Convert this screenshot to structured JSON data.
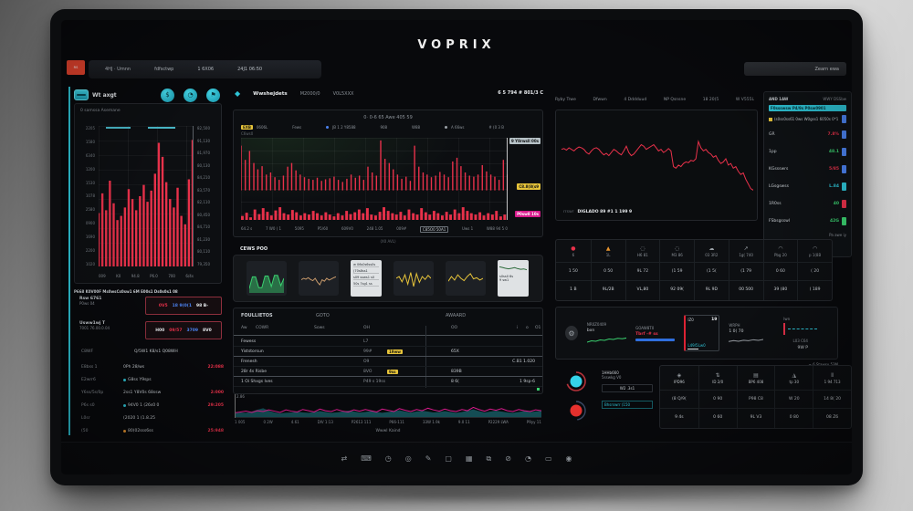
{
  "colors": {
    "red": "#e8314a",
    "green": "#3ad06f",
    "teal": "#2ec4d6",
    "blue": "#4b82f0",
    "yellow": "#e6c33a",
    "magenta": "#d81b8c",
    "orange": "#e8952e",
    "white": "#e6e9ec",
    "gray": "#9aa0a6",
    "tan": "#c89a6b",
    "tealDark": "#16545c",
    "dkgreen": "#2c6b3a"
  },
  "brand": {
    "title": "VOPRIX"
  },
  "toolbar": {
    "alert_button": "RS",
    "items": [
      "4HJ · Umnn",
      "fdfsctwp",
      "1 6X06",
      "24J1 06:50"
    ],
    "account_button": "Zearn ewa"
  },
  "sidebar": {
    "wallet_label": "Wt axgt",
    "icons": [
      {
        "g": "$"
      },
      {
        "g": "◔"
      },
      {
        "g": "⚑"
      }
    ],
    "panel_title": "0 samssa Asemane",
    "chart": {
      "type": "spikes",
      "color": "red",
      "w": 2.4,
      "values": [
        38,
        52,
        40,
        61,
        45,
        33,
        36,
        42,
        55,
        48,
        40,
        50,
        58,
        46,
        54,
        66,
        88,
        78,
        60,
        48,
        42,
        56,
        36,
        30,
        62,
        90
      ]
    },
    "y_left": [
      "2205",
      "1580",
      "6340",
      "1200",
      "1530",
      "1078",
      "2580",
      "0900",
      "1690",
      "2200",
      "1020"
    ],
    "y_right": [
      "82,500",
      "91,130",
      "81,970",
      "80,130",
      "84,210",
      "83,570",
      "82,110",
      "80,450",
      "84,710",
      "81,230",
      "80,110",
      "79,350"
    ],
    "x_ticks": [
      "009",
      "K0",
      "94.8",
      "P6.0",
      "700",
      "6/4s"
    ],
    "details_title": "P668 K0V00F Ms0wsCs0sw1 6M E00s1 Ds0s0s1 08",
    "box_rows": [
      {
        "l1": "Rsw 6761",
        "l2": "P0ws 04",
        "vals": [
          {
            "t": "0V5",
            "c": "red"
          },
          {
            "t": "18 9(0(1",
            "c": "blue"
          },
          {
            "t": "98 B-",
            "c": "white"
          }
        ]
      },
      {
        "l1": "Usww1wj T",
        "l2": "7001 76.00.0.04",
        "vals": [
          {
            "t": "H00",
            "c": "white"
          },
          {
            "t": "09/57",
            "c": "red"
          },
          {
            "t": "3709",
            "c": "blue"
          },
          {
            "t": "8V0",
            "c": "white"
          }
        ]
      }
    ],
    "summary": {
      "label": "C8WF",
      "value": "Q/5W1 K8/s1 Q08WH"
    },
    "rows": [
      {
        "label": "E8bss 1",
        "mid": "0Ph 28/ws",
        "val": "22:088"
      },
      {
        "label": "E2wrr6",
        "mid": "G8ss Y9sps",
        "val": "",
        "dot": "teal"
      },
      {
        "label": "Y6ss/5s/0p",
        "mid": "2ss1 Y8V0s 68ssw",
        "val": "2:000"
      },
      {
        "label": "P6s s0",
        "mid": "94V0 1 (26s0 0",
        "val": "29:205",
        "dot": "teal"
      },
      {
        "label": "L0sr",
        "mid": "(2020 1 (1.8.25",
        "val": ""
      },
      {
        "label": "(50",
        "mid": "80(02sss6ss",
        "val": "25:948",
        "dot": "orange"
      }
    ]
  },
  "center": {
    "header": {
      "symbol": "Wwshejdets",
      "item1": "M2000/0",
      "item2": "V0L5XXX",
      "right": "6 5 794 # 801/3 C"
    },
    "main_chart": {
      "title": "0· 0-6 65 Awe 405 59",
      "legend_chip": "EXB",
      "legend_sub": "C6ws0",
      "legend": [
        {
          "t": "0606L"
        },
        {
          "t": "Fews"
        },
        {
          "t": "JB 1 2 Y8588",
          "dot": "blue"
        },
        {
          "t": "908"
        },
        {
          "t": "W88"
        },
        {
          "t": "A 66ws",
          "dot": "gray"
        },
        {
          "t": "# (0 3 B"
        }
      ],
      "tag_top": "9 Y8rwsll 00s",
      "tag_mid": "C8.8(8(s9",
      "tag_bot": "P0sw8 10s",
      "spikes": {
        "type": "spikes",
        "color": "red",
        "w": 1.4,
        "values": [
          85,
          58,
          75,
          52,
          40,
          46,
          30,
          34,
          25,
          20,
          28,
          45,
          52,
          38,
          30,
          25,
          22,
          20,
          24,
          18,
          21,
          23,
          26,
          20,
          16,
          22,
          30,
          24,
          28,
          20,
          45,
          34,
          28,
          95,
          60,
          52,
          40,
          30,
          22,
          26,
          18,
          85,
          45,
          34,
          30,
          25,
          28,
          35,
          30,
          25,
          55,
          62,
          46,
          34,
          28,
          26,
          30,
          48,
          36,
          30,
          26,
          20,
          58,
          30
        ]
      },
      "volume": {
        "type": "bars",
        "color": "red",
        "values": [
          18,
          32,
          12,
          46,
          26,
          52,
          36,
          20,
          42,
          56,
          30,
          24,
          44,
          34,
          20,
          30,
          24,
          40,
          30,
          20,
          34,
          24,
          16,
          30,
          20,
          40,
          26,
          34,
          46,
          30,
          52,
          24,
          20,
          36,
          56,
          40,
          30,
          24,
          36,
          20,
          46,
          30,
          24,
          52,
          34,
          24,
          40,
          30,
          20,
          36,
          24,
          46,
          30,
          56,
          40,
          30,
          24,
          34,
          20,
          30,
          24,
          40,
          16,
          24
        ]
      },
      "x_ticks": [
        {
          "t": "64.2 s"
        },
        {
          "t": "7 W0 ( 1"
        },
        {
          "t": "5095"
        },
        {
          "t": "P5/60"
        },
        {
          "t": "609V0"
        },
        {
          "t": "248 1.05"
        },
        {
          "t": "009#"
        },
        {
          "t": "C85O0 50A1",
          "cls": "boxed"
        },
        {
          "t": "Uws 1"
        },
        {
          "t": "W88 94 5 0"
        }
      ],
      "bottom_label": "(X0 AVL)"
    },
    "sparks_label": "CEWS POO",
    "sparks": {
      "c1": {
        "type": "area",
        "fill": "green",
        "op": 0.45,
        "values": [
          15,
          55,
          55,
          18,
          18,
          58,
          58,
          22,
          60,
          60,
          25,
          50
        ],
        "line": [
          15,
          55,
          55,
          18,
          18,
          58,
          58,
          22,
          60,
          60,
          25,
          50
        ],
        "lineColor": "green"
      },
      "c2": {
        "type": "line",
        "color": "tan",
        "w": 1,
        "values": [
          45,
          50,
          47,
          52,
          46,
          42,
          50,
          37,
          28,
          45,
          40,
          50,
          44,
          48,
          52,
          55
        ]
      },
      "c3_lines": [
        "w 06s0s6ss0s",
        "(70s8ss1",
        "s09 ssws1 s0",
        "50s 7sg1 ss"
      ],
      "c4": {
        "type": "line",
        "color": "yellow",
        "w": 1,
        "values": [
          50,
          56,
          38,
          62,
          30,
          70,
          22,
          66,
          36,
          56,
          46,
          60,
          50
        ]
      },
      "c5": {
        "type": "line",
        "color": "yellow",
        "w": 1,
        "values": [
          40,
          56,
          44,
          62,
          50,
          42,
          56,
          66,
          48,
          52,
          44,
          50
        ]
      },
      "c6": {
        "type": "line",
        "color": "dkgreen",
        "w": 1,
        "values": [
          62,
          56,
          50,
          46,
          50,
          55,
          47,
          42,
          45,
          38
        ]
      },
      "c6_lines": [
        "s0ss0 6s",
        "9 sw1"
      ]
    },
    "table": {
      "tabs": [
        "FOULLIETOS",
        "GOTO",
        "AWAARD"
      ],
      "cols": [
        "Aw",
        "COWR",
        "Sows",
        "OH",
        "OO",
        "i",
        "o",
        "O1"
      ],
      "rows": [
        {
          "name": "Fewess",
          "oh": "L7"
        },
        {
          "name": "Yiststorsun",
          "oh": "99#",
          "chip": "19ww",
          "oo": "65X",
          "cls": "sep"
        },
        {
          "name": "Frenesh",
          "oh": "O9",
          "right": "C.B1 1.020"
        },
        {
          "name": "28r 4s Risbe",
          "oh": "8VO",
          "chip": "9ss",
          "oo": "839B",
          "cls": "sep"
        },
        {
          "name": "1 Oi Shxgs Ives",
          "oh": "P49 s 19ss",
          "oo": "8 6(",
          "right": "1 9sp-6"
        }
      ]
    },
    "area_chart": {
      "y_label": "2.86",
      "chart": {
        "type": "area",
        "fill": "tealDark",
        "op": 0.9,
        "values": [
          18,
          22,
          20,
          26,
          35,
          42,
          30,
          22,
          18,
          20,
          22,
          26,
          22,
          20,
          24,
          28,
          24,
          20,
          22,
          26,
          30,
          26,
          22,
          24,
          28,
          24,
          20,
          24,
          28,
          32,
          26,
          22,
          26,
          30,
          26,
          22,
          24,
          28,
          24,
          20,
          24,
          30,
          36,
          28,
          22,
          26,
          30,
          26,
          22,
          20,
          24,
          28,
          24,
          26,
          30
        ],
        "line": [
          20,
          24,
          28,
          22,
          30,
          26,
          34,
          28,
          22,
          34,
          28,
          24,
          36,
          30,
          24,
          38,
          30,
          26,
          36,
          28,
          24,
          34,
          28,
          36,
          30,
          24,
          38,
          32,
          26,
          40,
          32,
          26,
          36,
          30,
          42,
          34,
          28,
          38,
          30,
          26,
          36,
          30,
          46,
          36,
          28,
          38,
          32,
          40,
          30,
          26,
          36,
          30,
          26,
          34,
          30
        ],
        "lineColor": "magenta"
      },
      "x_labels": [
        "1 005",
        "0 2W",
        "4.61",
        "DIV 1:13",
        "P2613 111",
        "P66-111",
        "33W 1.9k",
        "9.0 11",
        "P2229 LWA",
        "P9yy 11"
      ],
      "footer": "Wwwl Kaind"
    }
  },
  "right": {
    "tabs": [
      "Ryby Trwe",
      "Dfwwn",
      "4 Dddduud",
      "NP Qsnsne",
      "18 20(5",
      "W V555L"
    ],
    "line_chart": {
      "prefix": "rrswr",
      "footer": "DIGLADO 89 #1 1 199 9",
      "chart": {
        "type": "line",
        "color": "red",
        "w": 1,
        "values": [
          62,
          63,
          61,
          64,
          62,
          60,
          63,
          65,
          64,
          62,
          58,
          56,
          60,
          63,
          64,
          62,
          58,
          55,
          57,
          54,
          58,
          62,
          60,
          57,
          55,
          60,
          66,
          58,
          54,
          56,
          60,
          64,
          68,
          66,
          62,
          64,
          66,
          68,
          64,
          60,
          62,
          58,
          60,
          63,
          60,
          40,
          38,
          42,
          40,
          44,
          46,
          45,
          48,
          47,
          50,
          72,
          64,
          60,
          62,
          58,
          56,
          52,
          54,
          48,
          44,
          46,
          50,
          42,
          44,
          38,
          40,
          34,
          30,
          32,
          24,
          18,
          12,
          10
        ]
      }
    },
    "watchlist": {
      "header_left": "AND 1AW",
      "header_right": "WWY DSSbw",
      "banner": "F0ssswsw P4/9s P0sw0901",
      "sub": "(s0ss0ss61 0ws W0gss1 6050s 0*1",
      "items": [
        {
          "label": "GR",
          "value": "7.8%",
          "vc": "red",
          "bc": "blue"
        },
        {
          "label": "1pp",
          "value": "48.1",
          "vc": "green",
          "bc": "blue"
        },
        {
          "label": "KGssswrs",
          "value": "5/85",
          "vc": "red",
          "bc": "blue"
        },
        {
          "label": "LGsgswss",
          "value": "L.84",
          "vc": "teal",
          "bc": "teal"
        },
        {
          "label": "1R0ss",
          "value": "40",
          "vc": "green",
          "bc": "red"
        },
        {
          "label": "FSbsgsswl",
          "value": "42G",
          "vc": "green",
          "bc": "green"
        }
      ],
      "footer": "Pa awe iy"
    },
    "stats": {
      "cols": [
        {
          "icon": "●",
          "ic": "red",
          "label": "6",
          "v1": "1 50",
          "v2": "1 B"
        },
        {
          "icon": "▲",
          "ic": "orange",
          "label": "1L",
          "v1": "0 50",
          "v2": "9L/2B"
        },
        {
          "icon": "◌",
          "ic": "gray",
          "label": "H6 81",
          "v1": "9L 72",
          "v2": "VL,80"
        },
        {
          "icon": "◌",
          "ic": "gray",
          "label": "M3 86",
          "v1": "(1 59",
          "v2": "92 09("
        },
        {
          "icon": "☁",
          "ic": "gray",
          "label": "03 3R2",
          "v1": "(1 5(",
          "v2": "9L 9D"
        },
        {
          "icon": "↗",
          "ic": "gray",
          "label": "1g( 740",
          "v1": "(1 79",
          "v2": "00 500"
        },
        {
          "icon": "◠",
          "ic": "gray",
          "label": "Pbg 20",
          "v1": "0 60",
          "v2": "39 (80"
        },
        {
          "icon": "◠",
          "ic": "gray",
          "label": "p 1(8B",
          "v1": "( 20",
          "v2": "( 189"
        }
      ]
    },
    "ops": {
      "c1": {
        "title": "NR0Z0409",
        "value": "bxn"
      },
      "c2": {
        "title": "GOAW8T0",
        "value": "Tbrf -# ss"
      },
      "c3": {
        "title": "IZ0",
        "big": "19",
        "sub": "L49/5Lw0"
      },
      "c4": {
        "title": "WRPH",
        "value": "1 0( 70"
      },
      "c5": {
        "title": "Iwn",
        "right_title": "L03 C64",
        "right_value": "9W P"
      },
      "note": "~ 6 Stawsy 53M",
      "spark_green": {
        "type": "line",
        "color": "green",
        "w": 1,
        "values": [
          20,
          35,
          30,
          45,
          40,
          55,
          50,
          62,
          58,
          66
        ]
      },
      "spark_gray": {
        "type": "line",
        "color": "gray",
        "w": 1,
        "values": [
          30,
          42,
          34,
          46,
          40,
          52,
          44,
          56
        ]
      }
    },
    "gauges": {
      "l1": "1HHb660",
      "l2": "5sswkg V0",
      "box": "W2 .3s1",
      "tag": "Bhsrswrr (150",
      "cols": [
        {
          "icon": "◈",
          "label": "IPD96",
          "v1": "(8 Q/9(",
          "v2": "9 4s"
        },
        {
          "icon": "⇅",
          "label": "ID 2/0",
          "v1": "0 90",
          "v2": "0 60"
        },
        {
          "icon": "▤",
          "label": "BP6 408",
          "v1": "P98 C8",
          "v2": "9L V3"
        },
        {
          "icon": "◮",
          "label": "tp 30",
          "v1": "W 20",
          "v2": "0 80"
        },
        {
          "icon": "Ⅱ",
          "label": "1 94 713",
          "v1": "14 8( 20",
          "v2": "08 Z6"
        }
      ]
    }
  },
  "dock": [
    {
      "g": "⇄"
    },
    {
      "g": "⌨"
    },
    {
      "g": "◷"
    },
    {
      "g": "◎"
    },
    {
      "g": "✎"
    },
    {
      "g": "▢"
    },
    {
      "g": "▦"
    },
    {
      "g": "⧉"
    },
    {
      "g": "⊘"
    },
    {
      "g": "◔"
    },
    {
      "g": "▭"
    },
    {
      "g": "◉"
    }
  ]
}
